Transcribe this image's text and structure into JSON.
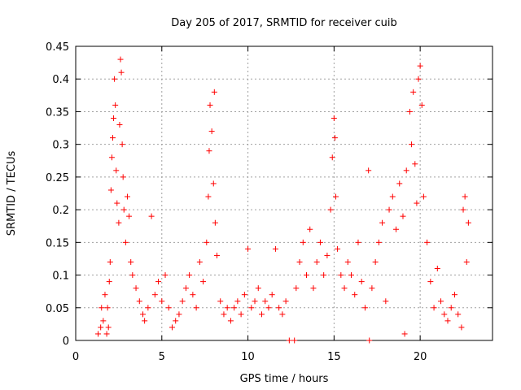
{
  "chart_data": {
    "type": "scatter",
    "title": "Day 205 of 2017, SRMTID for receiver cuib",
    "xlabel": "GPS time / hours",
    "ylabel": "SRMTID / TECUs",
    "xlim": [
      0,
      24.2
    ],
    "ylim": [
      0,
      0.45
    ],
    "x_ticks": [
      0,
      5,
      10,
      15,
      20
    ],
    "x_tick_labels": [
      "0",
      "5",
      "10",
      "15",
      "20"
    ],
    "y_ticks": [
      0,
      0.05,
      0.1,
      0.15,
      0.2,
      0.25,
      0.3,
      0.35,
      0.4,
      0.45
    ],
    "y_tick_labels": [
      "0",
      "0.05",
      "0.1",
      "0.15",
      "0.2",
      "0.25",
      "0.3",
      "0.35",
      "0.4",
      "0.45"
    ],
    "grid": true,
    "marker": "+",
    "marker_color": "#ff0000",
    "series": [
      {
        "name": "SRMTID",
        "points": [
          [
            1.3,
            0.01
          ],
          [
            1.45,
            0.02
          ],
          [
            1.5,
            0.05
          ],
          [
            1.6,
            0.03
          ],
          [
            1.7,
            0.07
          ],
          [
            1.8,
            0.01
          ],
          [
            1.85,
            0.05
          ],
          [
            1.9,
            0.02
          ],
          [
            1.95,
            0.09
          ],
          [
            2.0,
            0.12
          ],
          [
            2.05,
            0.23
          ],
          [
            2.1,
            0.28
          ],
          [
            2.15,
            0.31
          ],
          [
            2.2,
            0.34
          ],
          [
            2.25,
            0.4
          ],
          [
            2.3,
            0.36
          ],
          [
            2.35,
            0.26
          ],
          [
            2.4,
            0.21
          ],
          [
            2.5,
            0.18
          ],
          [
            2.55,
            0.33
          ],
          [
            2.6,
            0.43
          ],
          [
            2.65,
            0.41
          ],
          [
            2.7,
            0.3
          ],
          [
            2.75,
            0.25
          ],
          [
            2.8,
            0.2
          ],
          [
            2.9,
            0.15
          ],
          [
            3.0,
            0.22
          ],
          [
            3.1,
            0.19
          ],
          [
            3.2,
            0.12
          ],
          [
            3.3,
            0.1
          ],
          [
            3.5,
            0.08
          ],
          [
            3.7,
            0.06
          ],
          [
            3.9,
            0.04
          ],
          [
            4.0,
            0.03
          ],
          [
            4.2,
            0.05
          ],
          [
            4.4,
            0.19
          ],
          [
            4.6,
            0.07
          ],
          [
            4.8,
            0.09
          ],
          [
            5.0,
            0.06
          ],
          [
            5.2,
            0.1
          ],
          [
            5.4,
            0.05
          ],
          [
            5.6,
            0.02
          ],
          [
            5.8,
            0.03
          ],
          [
            6.0,
            0.04
          ],
          [
            6.2,
            0.06
          ],
          [
            6.4,
            0.08
          ],
          [
            6.6,
            0.1
          ],
          [
            6.8,
            0.07
          ],
          [
            7.0,
            0.05
          ],
          [
            7.2,
            0.12
          ],
          [
            7.4,
            0.09
          ],
          [
            7.6,
            0.15
          ],
          [
            7.7,
            0.22
          ],
          [
            7.75,
            0.29
          ],
          [
            7.8,
            0.36
          ],
          [
            7.9,
            0.32
          ],
          [
            8.0,
            0.24
          ],
          [
            8.05,
            0.38
          ],
          [
            8.1,
            0.18
          ],
          [
            8.2,
            0.13
          ],
          [
            8.4,
            0.06
          ],
          [
            8.6,
            0.04
          ],
          [
            8.8,
            0.05
          ],
          [
            9.0,
            0.03
          ],
          [
            9.2,
            0.05
          ],
          [
            9.4,
            0.06
          ],
          [
            9.6,
            0.04
          ],
          [
            9.8,
            0.07
          ],
          [
            10.0,
            0.14
          ],
          [
            10.2,
            0.05
          ],
          [
            10.4,
            0.06
          ],
          [
            10.6,
            0.08
          ],
          [
            10.8,
            0.04
          ],
          [
            11.0,
            0.06
          ],
          [
            11.2,
            0.05
          ],
          [
            11.4,
            0.07
          ],
          [
            11.6,
            0.14
          ],
          [
            11.8,
            0.05
          ],
          [
            12.0,
            0.04
          ],
          [
            12.2,
            0.06
          ],
          [
            12.4,
            0.0
          ],
          [
            12.7,
            0.0
          ],
          [
            12.8,
            0.08
          ],
          [
            13.0,
            0.12
          ],
          [
            13.2,
            0.15
          ],
          [
            13.4,
            0.1
          ],
          [
            13.6,
            0.17
          ],
          [
            13.8,
            0.08
          ],
          [
            14.0,
            0.12
          ],
          [
            14.2,
            0.15
          ],
          [
            14.4,
            0.1
          ],
          [
            14.6,
            0.13
          ],
          [
            14.8,
            0.2
          ],
          [
            14.9,
            0.28
          ],
          [
            15.0,
            0.34
          ],
          [
            15.05,
            0.31
          ],
          [
            15.1,
            0.22
          ],
          [
            15.2,
            0.14
          ],
          [
            15.4,
            0.1
          ],
          [
            15.6,
            0.08
          ],
          [
            15.8,
            0.12
          ],
          [
            16.0,
            0.1
          ],
          [
            16.2,
            0.07
          ],
          [
            16.4,
            0.15
          ],
          [
            16.6,
            0.09
          ],
          [
            16.8,
            0.05
          ],
          [
            17.0,
            0.26
          ],
          [
            17.05,
            0.0
          ],
          [
            17.2,
            0.08
          ],
          [
            17.4,
            0.12
          ],
          [
            17.6,
            0.15
          ],
          [
            17.8,
            0.18
          ],
          [
            18.0,
            0.06
          ],
          [
            18.2,
            0.2
          ],
          [
            18.4,
            0.22
          ],
          [
            18.6,
            0.17
          ],
          [
            18.8,
            0.24
          ],
          [
            19.0,
            0.19
          ],
          [
            19.1,
            0.01
          ],
          [
            19.2,
            0.26
          ],
          [
            19.4,
            0.35
          ],
          [
            19.5,
            0.3
          ],
          [
            19.6,
            0.38
          ],
          [
            19.7,
            0.27
          ],
          [
            19.8,
            0.21
          ],
          [
            19.9,
            0.4
          ],
          [
            20.0,
            0.42
          ],
          [
            20.1,
            0.36
          ],
          [
            20.2,
            0.22
          ],
          [
            20.4,
            0.15
          ],
          [
            20.6,
            0.09
          ],
          [
            20.8,
            0.05
          ],
          [
            21.0,
            0.11
          ],
          [
            21.2,
            0.06
          ],
          [
            21.4,
            0.04
          ],
          [
            21.6,
            0.03
          ],
          [
            21.8,
            0.05
          ],
          [
            22.0,
            0.07
          ],
          [
            22.2,
            0.04
          ],
          [
            22.4,
            0.02
          ],
          [
            22.5,
            0.2
          ],
          [
            22.6,
            0.22
          ],
          [
            22.7,
            0.12
          ],
          [
            22.8,
            0.18
          ]
        ]
      }
    ]
  }
}
